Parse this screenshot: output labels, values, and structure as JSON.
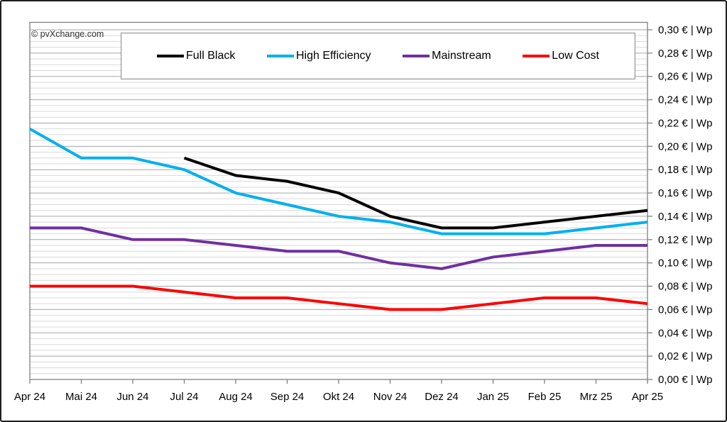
{
  "chart": {
    "copyright": "© pvXchange.com"
  },
  "chart_data": {
    "type": "line",
    "title": "",
    "xlabel": "",
    "ylabel": "€ | Wp",
    "grid": true,
    "legend_position": "top",
    "categories": [
      "Apr 24",
      "Mai 24",
      "Jun 24",
      "Jul 24",
      "Aug 24",
      "Sep 24",
      "Okt 24",
      "Nov 24",
      "Dez 24",
      "Jan 25",
      "Feb 25",
      "Mrz 25",
      "Apr 25"
    ],
    "series": [
      {
        "name": "Full Black",
        "color": "#000000",
        "values": [
          null,
          null,
          null,
          0.19,
          0.175,
          0.17,
          0.16,
          0.14,
          0.13,
          0.13,
          0.135,
          0.14,
          0.145
        ]
      },
      {
        "name": "High Efficiency",
        "color": "#00b0f0",
        "values": [
          0.215,
          0.19,
          0.19,
          0.18,
          0.16,
          0.15,
          0.14,
          0.135,
          0.125,
          0.125,
          0.125,
          0.13,
          0.135
        ]
      },
      {
        "name": "Mainstream",
        "color": "#7030a0",
        "values": [
          0.13,
          0.13,
          0.12,
          0.12,
          0.115,
          0.11,
          0.11,
          0.1,
          0.095,
          0.105,
          0.11,
          0.115,
          0.115
        ]
      },
      {
        "name": "Low Cost",
        "color": "#ff0000",
        "values": [
          0.08,
          0.08,
          0.08,
          0.075,
          0.07,
          0.07,
          0.065,
          0.06,
          0.06,
          0.065,
          0.07,
          0.07,
          0.065
        ]
      }
    ],
    "y_axis": {
      "min": 0.0,
      "max": 0.3,
      "major_step": 0.02,
      "minor_step": 0.005,
      "side": "right",
      "tick_labels": [
        "0,30 € | Wp",
        "0,28 € | Wp",
        "0,26 € | Wp",
        "0,24 € | Wp",
        "0,22 € | Wp",
        "0,20 € | Wp",
        "0,18 € | Wp",
        "0,16 € | Wp",
        "0,14 € | Wp",
        "0,12 € | Wp",
        "0,10 € | Wp",
        "0,08 € | Wp",
        "0,06 € | Wp",
        "0,04 € | Wp",
        "0,02 € | Wp",
        "0,00 € | Wp"
      ]
    },
    "colors": {
      "minor_grid": "#d9d9d9",
      "major_grid": "#a6a6a6",
      "plot_border": "#808080",
      "tick": "#808080"
    }
  }
}
